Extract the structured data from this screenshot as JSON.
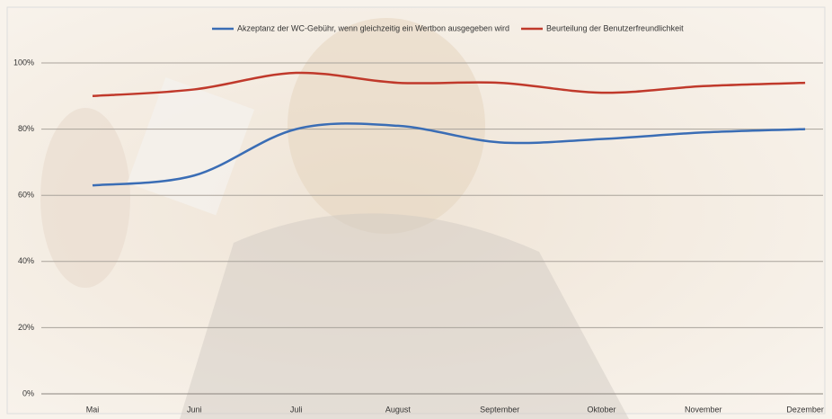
{
  "chart_data": {
    "type": "line",
    "categories": [
      "Mai",
      "Juni",
      "Juli",
      "August",
      "September",
      "Oktober",
      "November",
      "Dezember"
    ],
    "series": [
      {
        "name": "Akzeptanz der WC-Gebühr, wenn gleichzeitig ein Wertbon ausgegeben wird",
        "color": "#3a6db5",
        "values": [
          63,
          66,
          80,
          81,
          76,
          77,
          79,
          80
        ]
      },
      {
        "name": "Beurteilung der Benutzerfreundlichkeit",
        "color": "#c0392b",
        "values": [
          90,
          92,
          97,
          94,
          94,
          91,
          93,
          94
        ]
      }
    ],
    "ylim": [
      0,
      100
    ],
    "yticks": [
      {
        "value": 0,
        "label": "0%"
      },
      {
        "value": 20,
        "label": "20%"
      },
      {
        "value": 40,
        "label": "40%"
      },
      {
        "value": 60,
        "label": "60%"
      },
      {
        "value": 80,
        "label": "80%"
      },
      {
        "value": 100,
        "label": "100%"
      }
    ],
    "grid": true,
    "legend": "top"
  }
}
